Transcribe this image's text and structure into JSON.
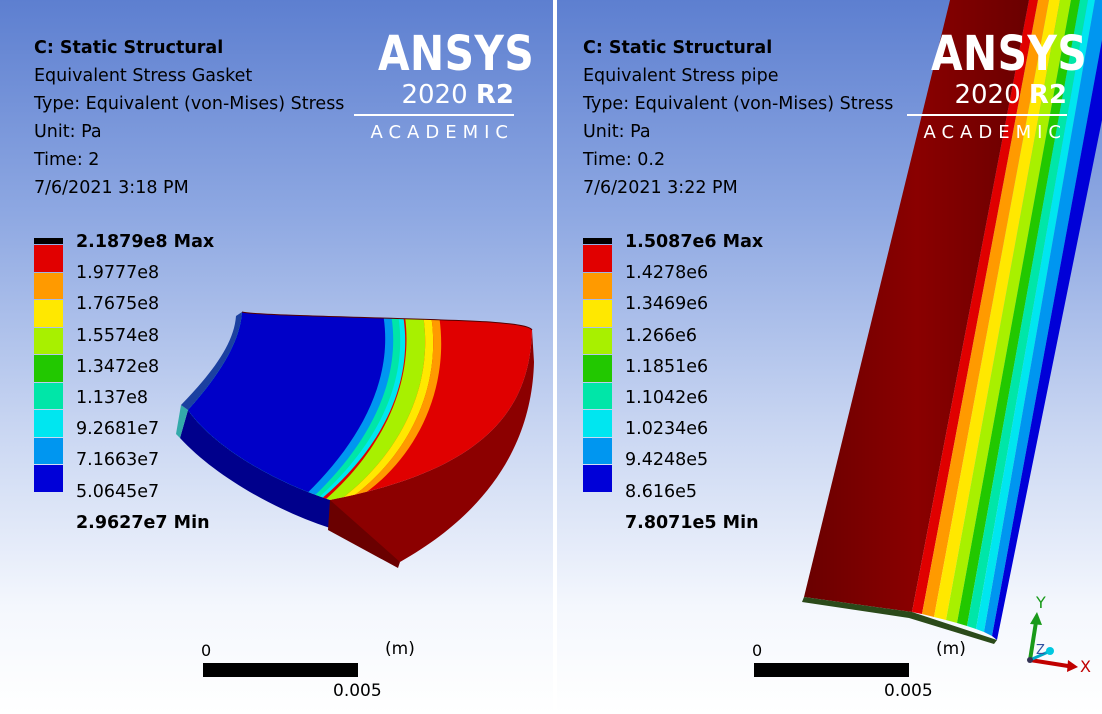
{
  "left_view": {
    "analysis": "C: Static Structural",
    "result_name": "Equivalent Stress Gasket",
    "type_line": "Type: Equivalent (von-Mises) Stress",
    "unit_line": "Unit: Pa",
    "time_line": "Time: 2",
    "date_line": "7/6/2021 3:18 PM",
    "legend": [
      "2.1879e8 Max",
      "1.9777e8",
      "1.7675e8",
      "1.5574e8",
      "1.3472e8",
      "1.137e8",
      "9.2681e7",
      "7.1663e7",
      "5.0645e7",
      "2.9627e7 Min"
    ],
    "scale": {
      "zero": "0",
      "unit": "(m)",
      "length": "0.005"
    }
  },
  "right_view": {
    "analysis": "C: Static Structural",
    "result_name": "Equivalent Stress pipe",
    "type_line": "Type: Equivalent (von-Mises) Stress",
    "unit_line": "Unit: Pa",
    "time_line": "Time: 0.2",
    "date_line": "7/6/2021 3:22 PM",
    "legend": [
      "1.5087e6 Max",
      "1.4278e6",
      "1.3469e6",
      "1.266e6",
      "1.1851e6",
      "1.1042e6",
      "1.0234e6",
      "9.4248e5",
      "8.616e5",
      "7.8071e5 Min"
    ],
    "scale": {
      "zero": "0",
      "unit": "(m)",
      "length": "0.005"
    }
  },
  "logo": {
    "brand": "ANSYS",
    "version": "2020",
    "release": "R2",
    "edition": "ACADEMIC"
  },
  "triad": {
    "x": "X",
    "y": "Y",
    "z": "Z"
  },
  "legend_colors": [
    "#000000",
    "#e10000",
    "#ff9a00",
    "#ffe800",
    "#a8f000",
    "#22c800",
    "#00e6a8",
    "#00e6f0",
    "#0096f0",
    "#0000d8"
  ]
}
